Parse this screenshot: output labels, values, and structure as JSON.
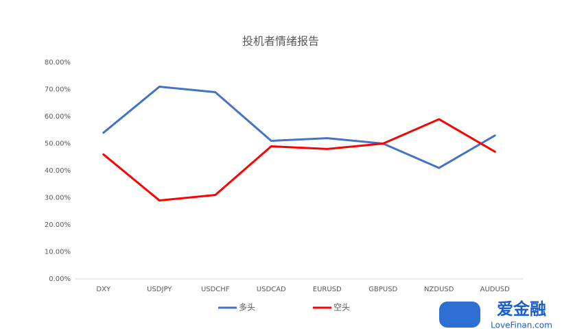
{
  "chart_data": {
    "type": "line",
    "title": "投机者情绪报告",
    "categories": [
      "DXY",
      "USDJPY",
      "USDCHF",
      "USDCAD",
      "EURUSD",
      "GBPUSD",
      "NZDUSD",
      "AUDUSD"
    ],
    "series": [
      {
        "name": "多头",
        "color": "#4472c4",
        "values": [
          54,
          71,
          69,
          51,
          52,
          50,
          41,
          53
        ]
      },
      {
        "name": "空头",
        "color": "#ff0000",
        "values": [
          46,
          29,
          31,
          49,
          48,
          50,
          59,
          47
        ]
      }
    ],
    "ylim": [
      0,
      80
    ],
    "yticks": [
      {
        "value": 0,
        "label": "0.00%"
      },
      {
        "value": 10,
        "label": "10.00%"
      },
      {
        "value": 20,
        "label": "20.00%"
      },
      {
        "value": 30,
        "label": "30.00%"
      },
      {
        "value": 40,
        "label": "40.00%"
      },
      {
        "value": 50,
        "label": "50.00%"
      },
      {
        "value": 60,
        "label": "60.00%"
      },
      {
        "value": 70,
        "label": "70.00%"
      },
      {
        "value": 80,
        "label": "80.00%"
      }
    ],
    "grid": false,
    "legend": "bottom"
  },
  "logo": {
    "name": "爱金融",
    "url": "LoveFinan.com"
  }
}
